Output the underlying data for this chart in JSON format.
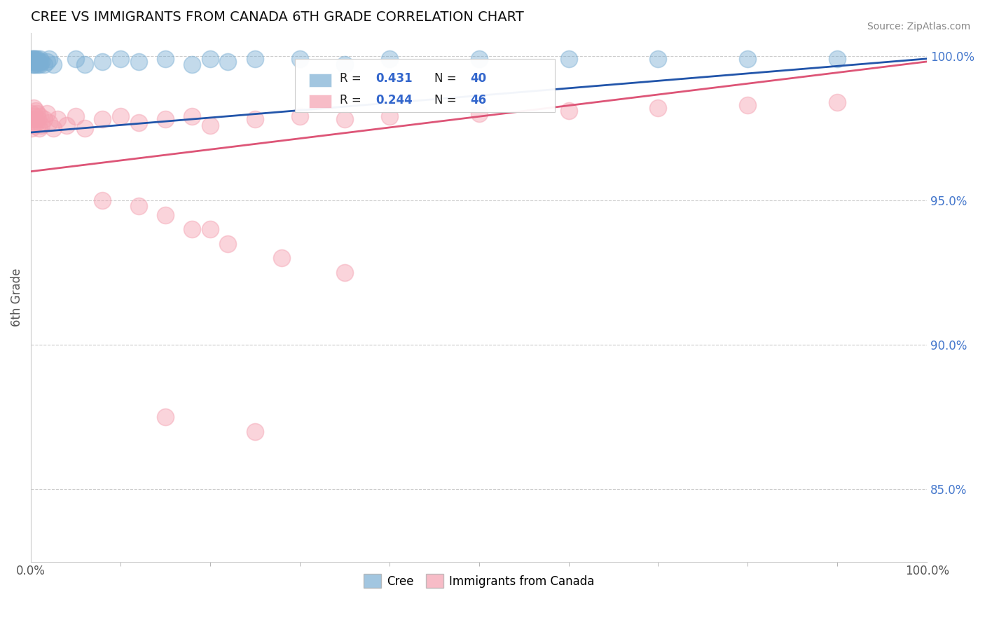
{
  "title": "CREE VS IMMIGRANTS FROM CANADA 6TH GRADE CORRELATION CHART",
  "source": "Source: ZipAtlas.com",
  "ylabel": "6th Grade",
  "xlim": [
    0.0,
    1.0
  ],
  "ylim": [
    0.825,
    1.008
  ],
  "right_yticks": [
    1.0,
    0.95,
    0.9,
    0.85
  ],
  "right_yticklabels": [
    "100.0%",
    "95.0%",
    "90.0%",
    "85.0%"
  ],
  "xticks": [
    0.0,
    1.0
  ],
  "xticklabels": [
    "0.0%",
    "100.0%"
  ],
  "cree_color": "#7BAFD4",
  "immigrants_color": "#F4A0B0",
  "cree_line_color": "#2255AA",
  "immigrants_line_color": "#DD5577",
  "cree_R": 0.431,
  "cree_N": 40,
  "immigrants_R": 0.244,
  "immigrants_N": 46,
  "background_color": "#ffffff",
  "grid_color": "#cccccc",
  "cree_x": [
    0.001,
    0.001,
    0.002,
    0.002,
    0.003,
    0.003,
    0.003,
    0.004,
    0.004,
    0.005,
    0.005,
    0.006,
    0.007,
    0.008,
    0.009,
    0.01,
    0.01,
    0.012,
    0.015,
    0.018,
    0.02,
    0.025,
    0.05,
    0.06,
    0.08,
    0.1,
    0.12,
    0.15,
    0.18,
    0.2,
    0.22,
    0.25,
    0.3,
    0.35,
    0.4,
    0.5,
    0.6,
    0.7,
    0.8,
    0.9
  ],
  "cree_y": [
    0.999,
    0.998,
    0.999,
    0.997,
    0.999,
    0.998,
    0.997,
    0.999,
    0.998,
    0.999,
    0.997,
    0.998,
    0.999,
    0.997,
    0.998,
    0.999,
    0.997,
    0.998,
    0.997,
    0.998,
    0.999,
    0.997,
    0.999,
    0.997,
    0.998,
    0.999,
    0.998,
    0.999,
    0.997,
    0.999,
    0.998,
    0.999,
    0.999,
    0.997,
    0.999,
    0.999,
    0.999,
    0.999,
    0.999,
    0.999
  ],
  "immigrants_x": [
    0.001,
    0.001,
    0.002,
    0.003,
    0.003,
    0.004,
    0.005,
    0.006,
    0.007,
    0.008,
    0.009,
    0.01,
    0.012,
    0.015,
    0.018,
    0.02,
    0.025,
    0.03,
    0.04,
    0.05,
    0.06,
    0.08,
    0.1,
    0.12,
    0.15,
    0.18,
    0.2,
    0.25,
    0.3,
    0.35,
    0.4,
    0.5,
    0.6,
    0.7,
    0.8,
    0.9,
    0.08,
    0.12,
    0.15,
    0.18,
    0.22,
    0.28,
    0.35,
    0.15,
    0.2,
    0.25
  ],
  "immigrants_y": [
    0.98,
    0.975,
    0.978,
    0.982,
    0.976,
    0.979,
    0.981,
    0.977,
    0.98,
    0.978,
    0.975,
    0.979,
    0.976,
    0.978,
    0.98,
    0.977,
    0.975,
    0.978,
    0.976,
    0.979,
    0.975,
    0.978,
    0.979,
    0.977,
    0.978,
    0.979,
    0.976,
    0.978,
    0.979,
    0.978,
    0.979,
    0.98,
    0.981,
    0.982,
    0.983,
    0.984,
    0.95,
    0.948,
    0.945,
    0.94,
    0.935,
    0.93,
    0.925,
    0.875,
    0.94,
    0.87
  ],
  "cree_trend_start_y": 0.9735,
  "cree_trend_end_y": 0.999,
  "immigrants_trend_start_y": 0.96,
  "immigrants_trend_end_y": 0.998
}
